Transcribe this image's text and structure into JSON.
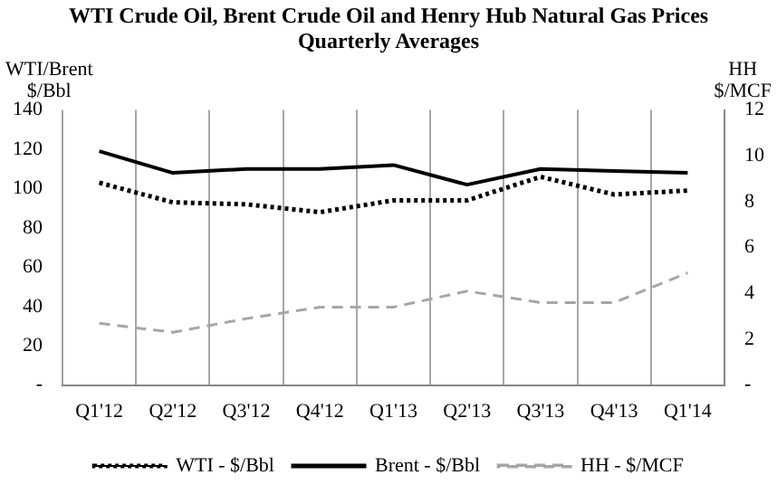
{
  "chart_data": {
    "type": "line",
    "title": "WTI Crude Oil, Brent Crude Oil and Henry Hub Natural Gas Prices",
    "subtitle": "Quarterly Averages",
    "ylabel": "WTI/Brent\n$/Bbl",
    "y2label": "HH\n$/MCF",
    "categories": [
      "Q1'12",
      "Q2'12",
      "Q3'12",
      "Q4'12",
      "Q1'13",
      "Q2'13",
      "Q3'13",
      "Q4'13",
      "Q1'14"
    ],
    "series": [
      {
        "name": "WTI - $/Bbl",
        "color": "#000000",
        "line_style": "dotted",
        "values": [
          103,
          93,
          92,
          88,
          94,
          94,
          106,
          97,
          99
        ]
      },
      {
        "name": "Brent - $/Bbl",
        "color": "#000000",
        "line_style": "solid",
        "values": [
          119,
          108,
          110,
          110,
          112,
          102,
          110,
          109,
          108
        ]
      },
      {
        "name": "HH - $/MCF",
        "color": "#a6a6a6",
        "line_style": "dashed",
        "axis": "y2",
        "values": [
          2.7,
          2.3,
          2.9,
          3.4,
          3.4,
          4.1,
          3.6,
          3.6,
          4.9
        ]
      }
    ],
    "ylim": [
      0,
      140
    ],
    "yticks": [
      {
        "value": 0,
        "label": "-"
      },
      20,
      40,
      60,
      80,
      100,
      120,
      140
    ],
    "y2lim": [
      0,
      12
    ],
    "y2ticks": [
      {
        "value": 0,
        "label": "-"
      },
      2,
      4,
      6,
      8,
      10,
      12
    ],
    "grid": "x",
    "legend": "bottom",
    "marker": "none"
  }
}
